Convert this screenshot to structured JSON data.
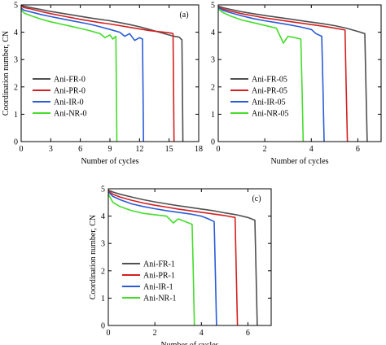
{
  "chart_data": [
    {
      "type": "line",
      "panel_label": "(a)",
      "xlabel": "Number of cycles",
      "ylabel": "Coordination number, CN",
      "xlim": [
        0,
        18
      ],
      "ylim": [
        0,
        5
      ],
      "xticks": [
        0,
        3,
        6,
        9,
        12,
        15,
        18
      ],
      "yticks": [
        0,
        1,
        2,
        3,
        4,
        5
      ],
      "legend_position": "bottom-left",
      "grid": false,
      "series": [
        {
          "name": "Ani-FR-0",
          "color": "#505050",
          "x": [
            0,
            0.3,
            1,
            2,
            3,
            4,
            5,
            6,
            7,
            8,
            9,
            10,
            11,
            12,
            13,
            14,
            15,
            15.5,
            16,
            16.3,
            16.35,
            16.4
          ],
          "y": [
            4.98,
            4.95,
            4.9,
            4.83,
            4.76,
            4.7,
            4.64,
            4.58,
            4.52,
            4.47,
            4.42,
            4.35,
            4.28,
            4.2,
            4.1,
            4.0,
            3.9,
            3.85,
            3.82,
            3.72,
            2.0,
            0
          ]
        },
        {
          "name": "Ani-PR-0",
          "color": "#d42020",
          "x": [
            0,
            0.3,
            1,
            2,
            3,
            4,
            5,
            6,
            7,
            8,
            9,
            10,
            11,
            12,
            13,
            14,
            15,
            15.4,
            15.45,
            15.5
          ],
          "y": [
            4.95,
            4.9,
            4.85,
            4.76,
            4.68,
            4.61,
            4.54,
            4.47,
            4.41,
            4.35,
            4.3,
            4.24,
            4.18,
            4.12,
            4.06,
            4.02,
            3.98,
            3.95,
            2.0,
            0
          ]
        },
        {
          "name": "Ani-IR-0",
          "color": "#2a5bd7",
          "x": [
            0,
            0.3,
            1,
            2,
            3,
            4,
            5,
            6,
            7,
            8,
            9,
            10,
            10.5,
            11,
            11.5,
            12,
            12.3,
            12.35,
            12.4
          ],
          "y": [
            4.88,
            4.8,
            4.74,
            4.65,
            4.57,
            4.5,
            4.43,
            4.36,
            4.29,
            4.2,
            4.1,
            4.0,
            3.85,
            3.95,
            3.7,
            3.8,
            3.75,
            2.0,
            0
          ]
        },
        {
          "name": "Ani-NR-0",
          "color": "#44dd2a",
          "x": [
            0,
            0.3,
            1,
            2,
            3,
            4,
            5,
            6,
            7,
            8,
            8.5,
            9,
            9.3,
            9.6,
            9.65,
            9.7
          ],
          "y": [
            4.82,
            4.7,
            4.6,
            4.48,
            4.38,
            4.3,
            4.22,
            4.14,
            4.05,
            3.95,
            3.8,
            3.9,
            3.75,
            3.85,
            2.0,
            0
          ]
        }
      ]
    },
    {
      "type": "line",
      "panel_label": "",
      "xlabel": "Number of cycles",
      "ylabel": "",
      "xlim": [
        0,
        7
      ],
      "ylim": [
        0,
        5
      ],
      "xticks": [
        0,
        2,
        4,
        6
      ],
      "yticks": [
        0,
        1,
        2,
        3,
        4,
        5
      ],
      "legend_position": "bottom-left",
      "grid": false,
      "series": [
        {
          "name": "Ani-FR-05",
          "color": "#505050",
          "x": [
            0,
            0.2,
            0.5,
            1,
            1.5,
            2,
            2.5,
            3,
            3.5,
            4,
            4.5,
            5,
            5.5,
            6,
            6.3,
            6.35,
            6.4
          ],
          "y": [
            4.95,
            4.9,
            4.84,
            4.75,
            4.68,
            4.61,
            4.55,
            4.49,
            4.43,
            4.37,
            4.31,
            4.24,
            4.15,
            4.03,
            3.95,
            2.0,
            0
          ]
        },
        {
          "name": "Ani-PR-05",
          "color": "#d42020",
          "x": [
            0,
            0.2,
            0.5,
            1,
            1.5,
            2,
            2.5,
            3,
            3.5,
            4,
            4.5,
            5,
            5.45,
            5.5,
            5.55
          ],
          "y": [
            4.92,
            4.85,
            4.78,
            4.68,
            4.6,
            4.52,
            4.46,
            4.4,
            4.34,
            4.28,
            4.22,
            4.15,
            4.08,
            2.0,
            0
          ]
        },
        {
          "name": "Ani-IR-05",
          "color": "#2a5bd7",
          "x": [
            0,
            0.2,
            0.5,
            1,
            1.5,
            2,
            2.5,
            3,
            3.5,
            4,
            4.2,
            4.45,
            4.5,
            4.55
          ],
          "y": [
            4.9,
            4.8,
            4.72,
            4.6,
            4.5,
            4.42,
            4.35,
            4.28,
            4.2,
            4.1,
            3.95,
            3.85,
            2.0,
            0
          ]
        },
        {
          "name": "Ani-NR-05",
          "color": "#44dd2a",
          "x": [
            0,
            0.2,
            0.5,
            1,
            1.5,
            2,
            2.5,
            2.8,
            3,
            3.3,
            3.55,
            3.6,
            3.65
          ],
          "y": [
            4.85,
            4.72,
            4.6,
            4.45,
            4.35,
            4.25,
            4.15,
            3.6,
            3.85,
            3.8,
            3.75,
            2.0,
            0
          ]
        }
      ]
    },
    {
      "type": "line",
      "panel_label": "(c)",
      "xlabel": "Number of cycles",
      "ylabel": "Coordination number, CN",
      "xlim": [
        0,
        7
      ],
      "ylim": [
        0,
        5
      ],
      "xticks": [
        0,
        2,
        4,
        6
      ],
      "yticks": [
        0,
        1,
        2,
        3,
        4,
        5
      ],
      "legend_position": "bottom-left",
      "grid": false,
      "series": [
        {
          "name": "Ani-FR-1",
          "color": "#505050",
          "x": [
            0,
            0.2,
            0.5,
            1,
            1.5,
            2,
            2.5,
            3,
            3.5,
            4,
            4.5,
            5,
            5.5,
            6,
            6.3,
            6.35,
            6.4
          ],
          "y": [
            4.95,
            4.88,
            4.8,
            4.7,
            4.6,
            4.52,
            4.45,
            4.38,
            4.32,
            4.26,
            4.2,
            4.12,
            4.05,
            3.95,
            3.85,
            2.0,
            0
          ]
        },
        {
          "name": "Ani-PR-1",
          "color": "#d42020",
          "x": [
            0,
            0.2,
            0.5,
            1,
            1.5,
            2,
            2.5,
            3,
            3.5,
            4,
            4.5,
            5,
            5.45,
            5.5,
            5.55
          ],
          "y": [
            4.92,
            4.8,
            4.7,
            4.58,
            4.48,
            4.4,
            4.33,
            4.26,
            4.2,
            4.14,
            4.08,
            4.02,
            3.95,
            2.0,
            0
          ]
        },
        {
          "name": "Ani-IR-1",
          "color": "#2a5bd7",
          "x": [
            0,
            0.2,
            0.5,
            1,
            1.5,
            2,
            2.5,
            3,
            3.5,
            4,
            4.3,
            4.55,
            4.6,
            4.65
          ],
          "y": [
            4.88,
            4.72,
            4.6,
            4.45,
            4.35,
            4.27,
            4.2,
            4.14,
            4.08,
            4.0,
            3.9,
            3.8,
            2.0,
            0
          ]
        },
        {
          "name": "Ani-NR-1",
          "color": "#44dd2a",
          "x": [
            0,
            0.2,
            0.5,
            1,
            1.5,
            2,
            2.5,
            2.8,
            3,
            3.3,
            3.6,
            3.65,
            3.7
          ],
          "y": [
            4.8,
            4.5,
            4.35,
            4.2,
            4.1,
            4.05,
            4.0,
            3.75,
            3.9,
            3.8,
            3.7,
            2.0,
            0
          ]
        }
      ]
    }
  ]
}
